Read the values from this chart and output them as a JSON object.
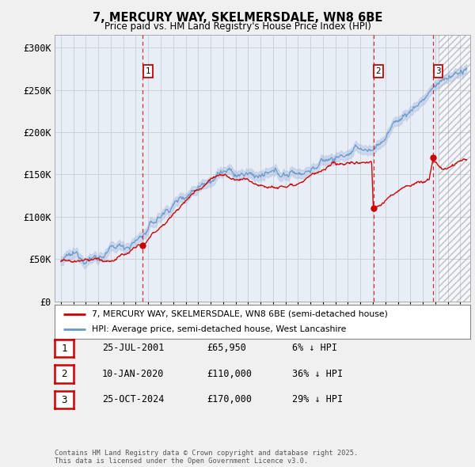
{
  "title1": "7, MERCURY WAY, SKELMERSDALE, WN8 6BE",
  "title2": "Price paid vs. HM Land Registry's House Price Index (HPI)",
  "ylabel_ticks": [
    "£0",
    "£50K",
    "£100K",
    "£150K",
    "£200K",
    "£250K",
    "£300K"
  ],
  "ytick_values": [
    0,
    50000,
    100000,
    150000,
    200000,
    250000,
    300000
  ],
  "ylim": [
    0,
    315000
  ],
  "xlim_start": 1994.5,
  "xlim_end": 2027.8,
  "sale_dates": [
    2001.56,
    2020.03,
    2024.82
  ],
  "sale_prices": [
    65950,
    110000,
    170000
  ],
  "sale_labels": [
    "1",
    "2",
    "3"
  ],
  "hatch_start": 2025.25,
  "legend_label_red": "7, MERCURY WAY, SKELMERSDALE, WN8 6BE (semi-detached house)",
  "legend_label_blue": "HPI: Average price, semi-detached house, West Lancashire",
  "table_rows": [
    {
      "num": "1",
      "date": "25-JUL-2001",
      "price": "£65,950",
      "hpi": "6% ↓ HPI"
    },
    {
      "num": "2",
      "date": "10-JAN-2020",
      "price": "£110,000",
      "hpi": "36% ↓ HPI"
    },
    {
      "num": "3",
      "date": "25-OCT-2024",
      "price": "£170,000",
      "hpi": "29% ↓ HPI"
    }
  ],
  "footnote": "Contains HM Land Registry data © Crown copyright and database right 2025.\nThis data is licensed under the Open Government Licence v3.0.",
  "color_red": "#cc0000",
  "color_blue": "#6699cc",
  "color_blue_band": "#aabbdd",
  "color_grid": "#cccccc",
  "color_bg": "#e8eef8",
  "bg_color": "#f0f0f0"
}
